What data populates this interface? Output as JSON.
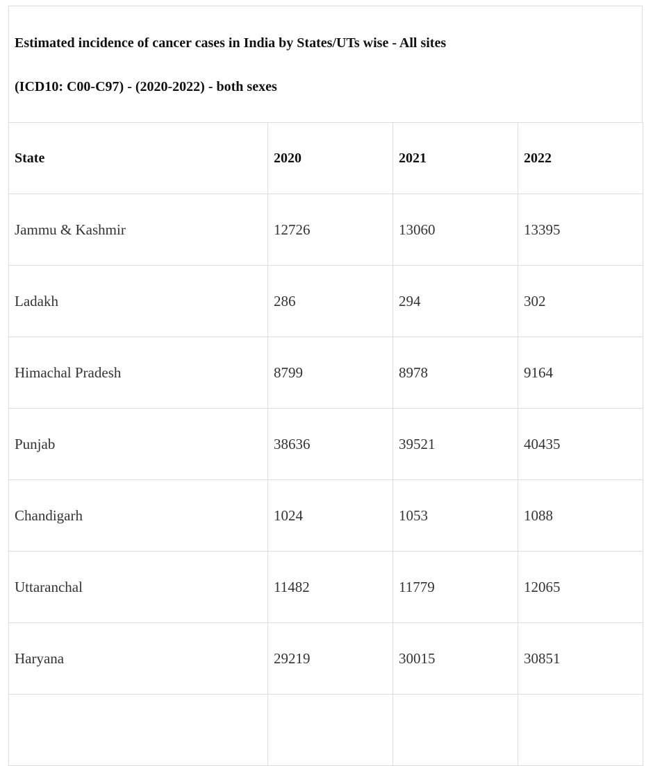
{
  "title": {
    "line1": "Estimated incidence of cancer cases in India by States/UTs wise - All sites",
    "line2": "(ICD10: C00-C97) - (2020-2022) - both sexes"
  },
  "table": {
    "headers": [
      "State",
      "2020",
      "2021",
      "2022"
    ],
    "rows": [
      [
        "Jammu & Kashmir",
        "12726",
        "13060",
        "13395"
      ],
      [
        "Ladakh",
        "286",
        "294",
        "302"
      ],
      [
        "Himachal Pradesh",
        "8799",
        "8978",
        "9164"
      ],
      [
        "Punjab",
        "38636",
        "39521",
        "40435"
      ],
      [
        "Chandigarh",
        "1024",
        "1053",
        "1088"
      ],
      [
        "Uttaranchal",
        "11482",
        "11779",
        "12065"
      ],
      [
        "Haryana",
        "29219",
        "30015",
        "30851"
      ]
    ]
  }
}
